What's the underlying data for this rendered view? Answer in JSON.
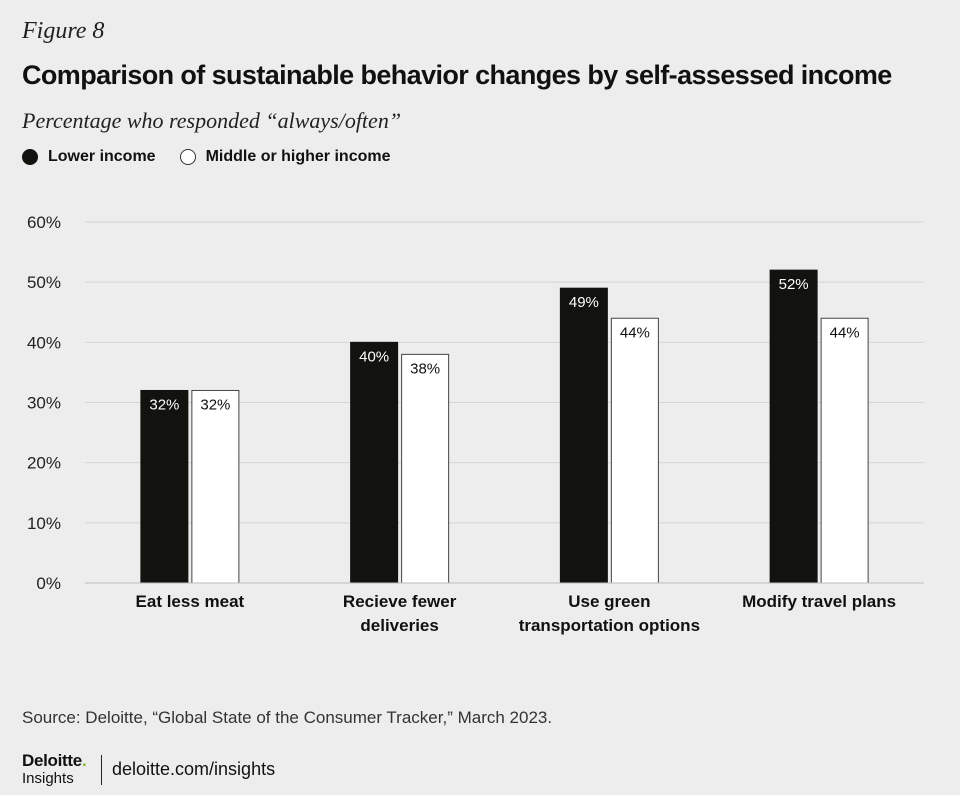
{
  "header": {
    "figure_label": "Figure 8",
    "title": "Comparison of sustainable behavior changes by self-assessed income",
    "subtitle": "Percentage who responded “always/often”"
  },
  "legend": {
    "items": [
      {
        "label": "Lower income",
        "color": "#12130f"
      },
      {
        "label": "Middle or higher income",
        "color": "#ffffff"
      }
    ]
  },
  "chart_data": {
    "type": "bar",
    "title": "Comparison of sustainable behavior changes by self-assessed income",
    "subtitle": "Percentage who responded “always/often”",
    "categories": [
      [
        "Eat less meat"
      ],
      [
        "Recieve fewer",
        "deliveries"
      ],
      [
        "Use green",
        "transportation options"
      ],
      [
        "Modify travel plans"
      ]
    ],
    "series": [
      {
        "name": "Lower income",
        "color": "#12130f",
        "values": [
          32,
          40,
          49,
          52
        ],
        "value_labels": [
          "32%",
          "40%",
          "49%",
          "52%"
        ]
      },
      {
        "name": "Middle or higher income",
        "color": "#ffffff",
        "values": [
          32,
          38,
          44,
          44
        ],
        "value_labels": [
          "32%",
          "38%",
          "44%",
          "44%"
        ]
      }
    ],
    "ylim": [
      0,
      60
    ],
    "yticks": [
      0,
      10,
      20,
      30,
      40,
      50,
      60
    ],
    "ytick_labels": [
      "0%",
      "10%",
      "20%",
      "30%",
      "40%",
      "50%",
      "60%"
    ],
    "xlabel": "",
    "ylabel": "",
    "grid": true,
    "legend_position": "top-left"
  },
  "footer": {
    "source": "Source: Deloitte, “Global State of the Consumer Tracker,” March 2023.",
    "logo_main": "Deloitte",
    "logo_dot": ".",
    "logo_sub": "Insights",
    "url": "deloitte.com/insights"
  }
}
